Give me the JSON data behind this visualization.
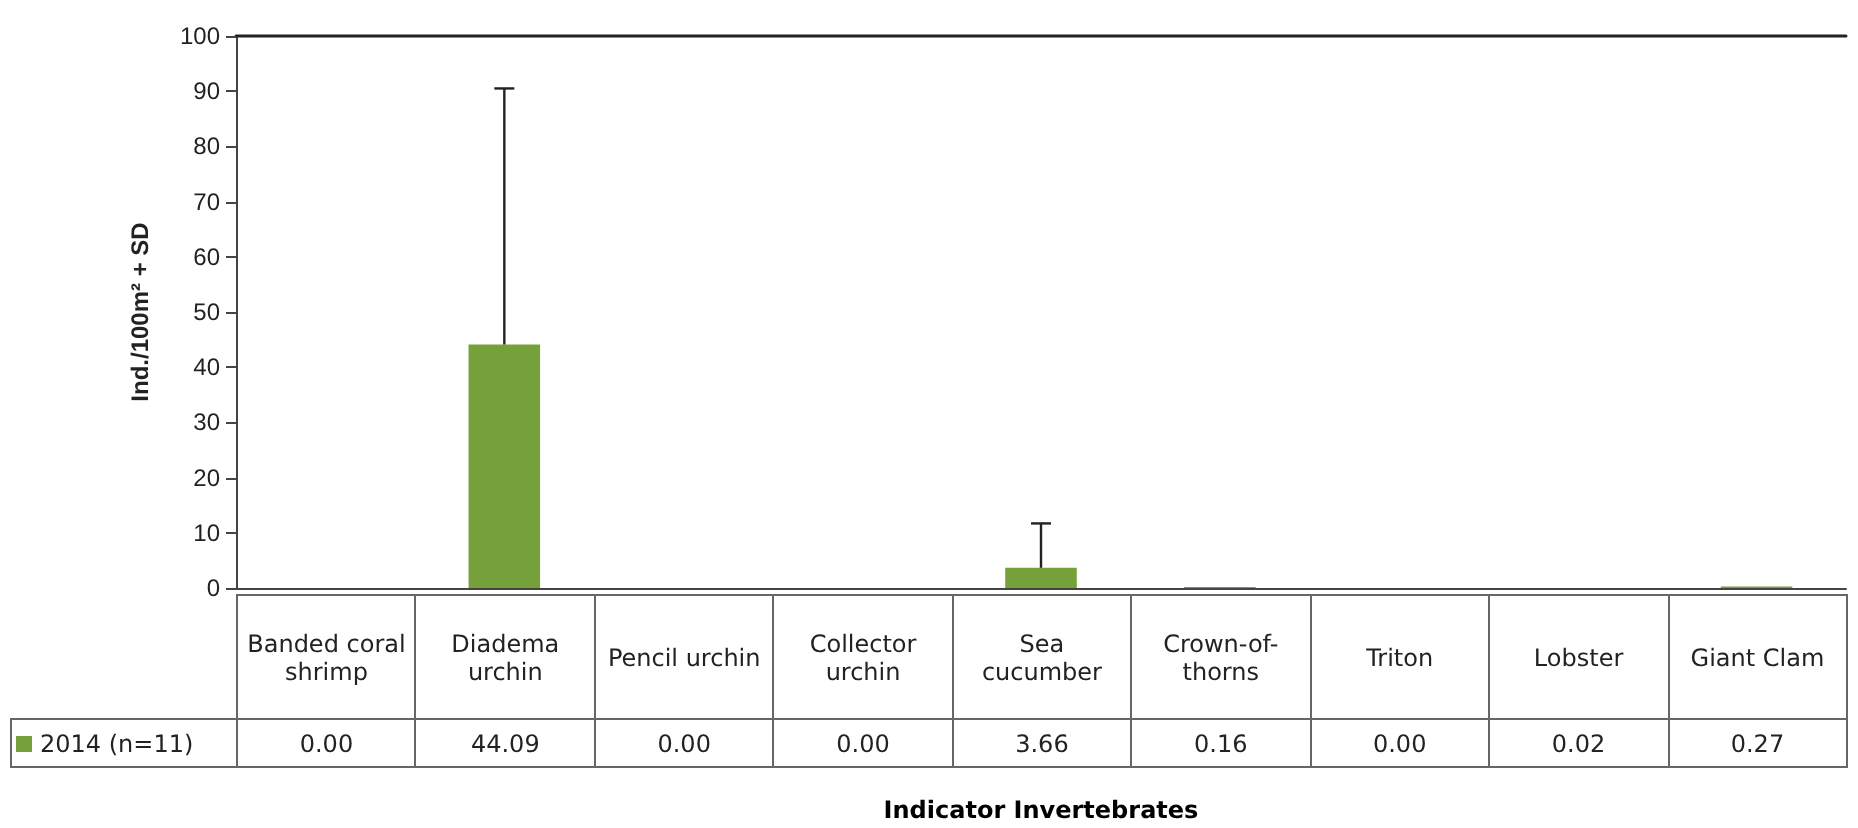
{
  "chart_data": {
    "type": "bar",
    "xlabel": "Indicator Invertebrates",
    "ylabel": "Ind./100m² + SD",
    "categories": [
      "Banded coral shrimp",
      "Diadema urchin",
      "Pencil urchin",
      "Collector urchin",
      "Sea cucumber",
      "Crown-of-thorns",
      "Triton",
      "Lobster",
      "Giant Clam"
    ],
    "series": [
      {
        "name": "2014 (n=11)",
        "color": "#76a03a",
        "values": [
          0.0,
          44.09,
          0.0,
          0.0,
          3.66,
          0.16,
          0.0,
          0.02,
          0.27
        ],
        "value_labels": [
          "0.00",
          "44.09",
          "0.00",
          "0.00",
          "3.66",
          "0.16",
          "0.00",
          "0.02",
          "0.27"
        ],
        "errors": [
          null,
          [
            44.09,
            90.5
          ],
          null,
          null,
          [
            3.66,
            11.7
          ],
          null,
          null,
          null,
          null
        ]
      }
    ],
    "ylim": [
      0,
      100
    ],
    "yticks": [
      0,
      10,
      20,
      30,
      40,
      50,
      60,
      70,
      80,
      90,
      100
    ],
    "grid": false,
    "legend": "bottom left"
  }
}
